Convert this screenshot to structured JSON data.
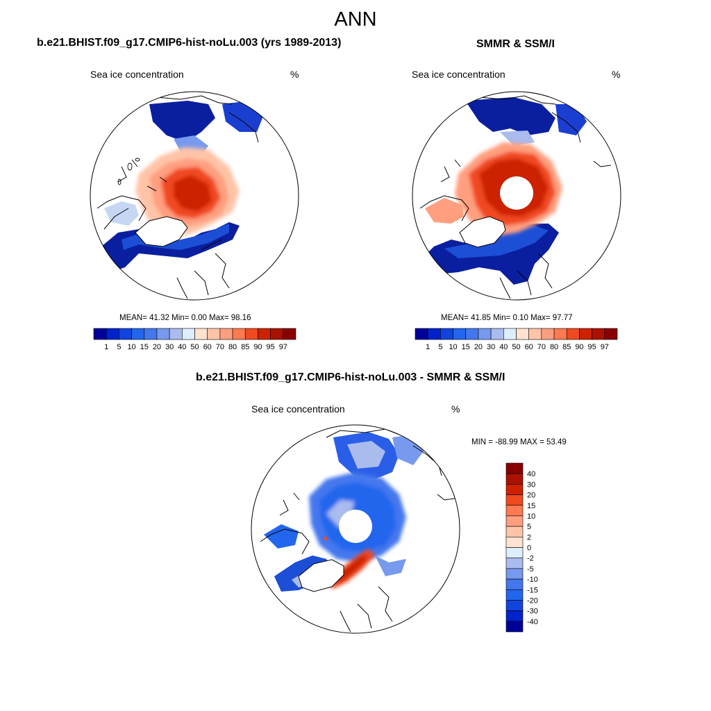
{
  "title": "ANN",
  "panels": [
    {
      "id": "model",
      "title": "b.e21.BHIST.f09_g17.CMIP6-hist-noLu.003 (yrs 1989-2013)",
      "left_label": "Sea ice concentration",
      "right_label": "%",
      "stats": {
        "label": "MEAN=  41.32  Min=   0.00  Max=  98.16",
        "mean": 41.32,
        "min": 0.0,
        "max": 98.16
      }
    },
    {
      "id": "obs",
      "title": "SMMR & SSM/I",
      "left_label": "Sea ice concentration",
      "right_label": "%",
      "stats": {
        "label": "MEAN=  41.85  Min=   0.10  Max=  97.77",
        "mean": 41.85,
        "min": 0.1,
        "max": 97.77
      }
    },
    {
      "id": "diff",
      "title": "b.e21.BHIST.f09_g17.CMIP6-hist-noLu.003 - SMMR & SSM/I",
      "left_label": "Sea ice concentration",
      "right_label": "%",
      "stats": {
        "label": "MIN = -88.99 MAX =  53.49",
        "min": -88.99,
        "max": 53.49
      }
    }
  ],
  "colorbar_conc": {
    "labels": [
      "1",
      "5",
      "10",
      "15",
      "20",
      "30",
      "40",
      "50",
      "60",
      "70",
      "80",
      "85",
      "90",
      "95",
      "97"
    ],
    "colors": [
      "#000099",
      "#0022cc",
      "#1144dd",
      "#2266ee",
      "#4477ee",
      "#7799ee",
      "#aabbee",
      "#ddeeff",
      "#ffe2d0",
      "#ffc4a8",
      "#ff9f7f",
      "#ff7a50",
      "#f04a20",
      "#cc2200",
      "#aa1100",
      "#880000"
    ]
  },
  "colorbar_diff": {
    "labels": [
      "40",
      "30",
      "20",
      "15",
      "10",
      "5",
      "2",
      "0",
      "-2",
      "-5",
      "-10",
      "-15",
      "-20",
      "-30",
      "-40"
    ],
    "colors": [
      "#880000",
      "#aa1100",
      "#cc2200",
      "#f04a20",
      "#ff7a50",
      "#ff9f7f",
      "#ffc4a8",
      "#ffe2d0",
      "#ddeeff",
      "#aabbee",
      "#7799ee",
      "#4477ee",
      "#2266ee",
      "#1144dd",
      "#0022cc",
      "#000099"
    ]
  }
}
